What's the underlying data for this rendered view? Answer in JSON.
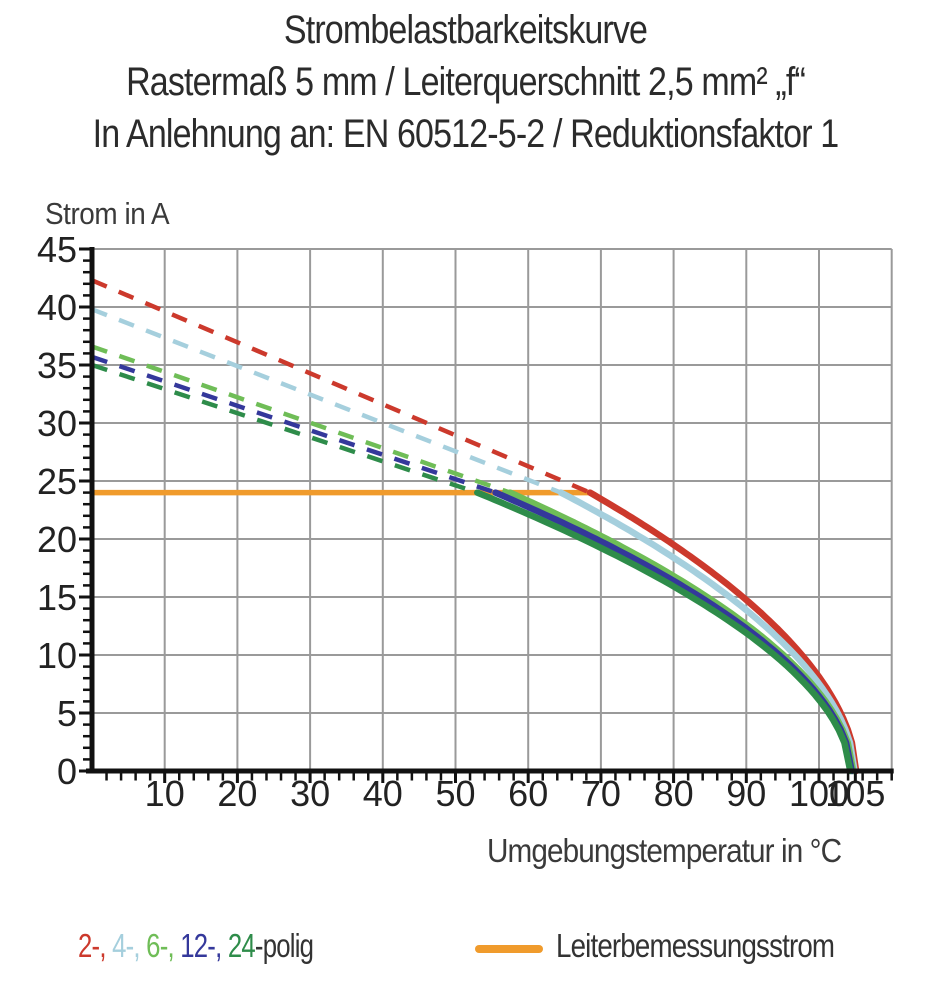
{
  "title": {
    "line1": "Strombelastbarkeitskurve",
    "line2": "Rastermaß 5 mm / Leiterquerschnitt 2,5 mm² „f“",
    "line3": "In Anlehnung an: EN 60512-5-2 / Reduktionsfaktor 1"
  },
  "chart_data": {
    "type": "line",
    "ylabel": "Strom in A",
    "xlabel": "Umgebungstemperatur in °C",
    "xlim": [
      0,
      110
    ],
    "ylim": [
      0,
      45
    ],
    "x_major_ticks": [
      10,
      20,
      30,
      40,
      50,
      60,
      70,
      80,
      90,
      100,
      105
    ],
    "x_gridlines": [
      10,
      20,
      30,
      40,
      50,
      60,
      70,
      80,
      90,
      100,
      110
    ],
    "y_major_ticks": [
      0,
      5,
      10,
      15,
      20,
      25,
      30,
      35,
      40,
      45
    ],
    "x_minor_step": 2,
    "y_minor_step": 1,
    "grid": true,
    "grid_color": "#9a9a9a",
    "axis_color": "#111111",
    "rated_current_line": {
      "label": "Leiterbemessungsstrom",
      "value_a": 24,
      "t_start_c": 0,
      "t_end_c": 68.5,
      "color": "#F09B2C"
    },
    "curve_model": {
      "exponent": 0.55,
      "note_style": "dashed derating line above rated current, solid curve below"
    },
    "series": [
      {
        "name": "2-polig",
        "color": "#CC392C",
        "i_at_0c": 42.3,
        "knee_c": 68.5,
        "zero_c": 105.1,
        "points_c_a": [
          [
            0,
            42.3
          ],
          [
            20,
            37.0
          ],
          [
            40,
            31.6
          ],
          [
            60,
            26.3
          ],
          [
            68.5,
            24
          ],
          [
            80,
            19.5
          ],
          [
            90,
            14.8
          ],
          [
            100,
            8.1
          ],
          [
            105.1,
            0
          ]
        ]
      },
      {
        "name": "4-polig",
        "color": "#A5CFDD",
        "i_at_0c": 39.8,
        "knee_c": 64.5,
        "zero_c": 104.9,
        "points_c_a": [
          [
            0,
            39.8
          ],
          [
            20,
            34.9
          ],
          [
            40,
            30.0
          ],
          [
            60,
            25.1
          ],
          [
            64.5,
            24
          ],
          [
            80,
            18.4
          ],
          [
            90,
            13.9
          ],
          [
            100,
            7.5
          ],
          [
            104.9,
            0
          ]
        ]
      },
      {
        "name": "6-polig",
        "color": "#6FBD57",
        "i_at_0c": 36.6,
        "knee_c": 57.5,
        "zero_c": 104.7,
        "points_c_a": [
          [
            0,
            36.6
          ],
          [
            20,
            32.2
          ],
          [
            40,
            27.8
          ],
          [
            57.5,
            24
          ],
          [
            70,
            20.3
          ],
          [
            80,
            16.8
          ],
          [
            90,
            12.6
          ],
          [
            100,
            6.8
          ],
          [
            104.7,
            0
          ]
        ]
      },
      {
        "name": "12-polig",
        "color": "#34389B",
        "i_at_0c": 35.7,
        "knee_c": 55.5,
        "zero_c": 104.5,
        "points_c_a": [
          [
            0,
            35.7
          ],
          [
            20,
            31.5
          ],
          [
            40,
            27.2
          ],
          [
            55.5,
            24
          ],
          [
            70,
            19.8
          ],
          [
            80,
            16.4
          ],
          [
            90,
            12.3
          ],
          [
            100,
            6.4
          ],
          [
            104.5,
            0
          ]
        ]
      },
      {
        "name": "24-polig",
        "color": "#2E8C4A",
        "i_at_0c": 35.0,
        "knee_c": 53.0,
        "zero_c": 104.3,
        "points_c_a": [
          [
            0,
            35.0
          ],
          [
            20,
            30.9
          ],
          [
            40,
            26.7
          ],
          [
            53,
            24
          ],
          [
            70,
            19.2
          ],
          [
            80,
            15.9
          ],
          [
            90,
            11.9
          ],
          [
            100,
            6.1
          ],
          [
            104.3,
            0
          ]
        ]
      }
    ]
  },
  "legend": {
    "poles": [
      {
        "text": "2-, ",
        "color": "#CC392C"
      },
      {
        "text": "4-, ",
        "color": "#A5CFDD"
      },
      {
        "text": "6-, ",
        "color": "#6FBD57"
      },
      {
        "text": "12-, ",
        "color": "#34389B"
      },
      {
        "text": "24",
        "color": "#2E8C4A"
      },
      {
        "text": "-polig",
        "color": "#333333"
      }
    ],
    "rated": {
      "label": "Leiterbemessungsstrom",
      "color": "#F09B2C"
    }
  }
}
